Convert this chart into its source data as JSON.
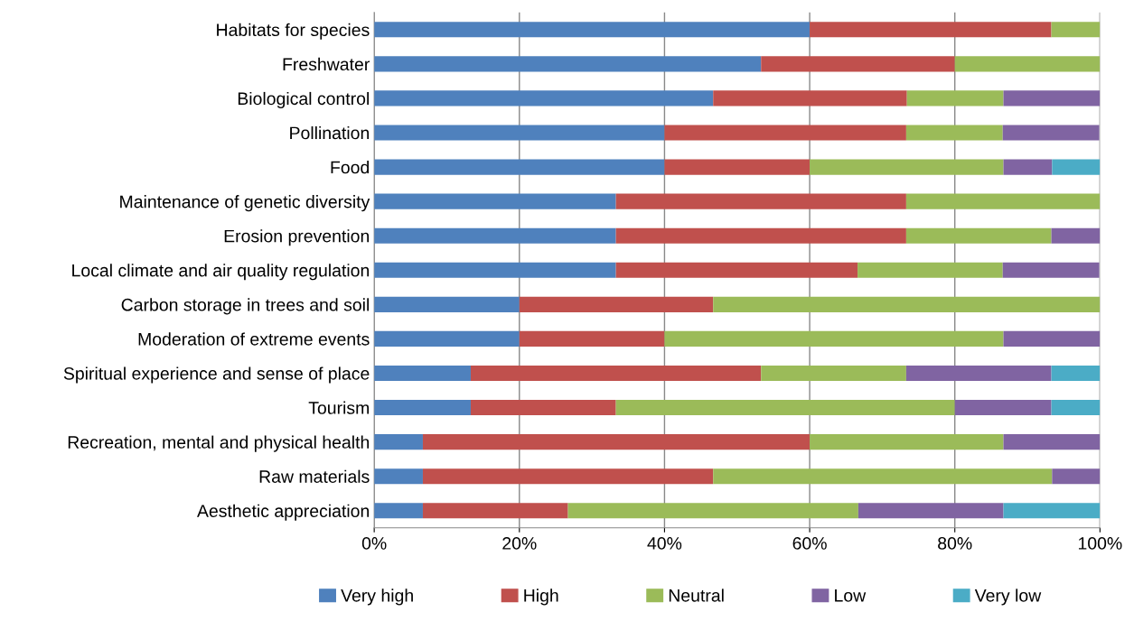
{
  "chart_data": {
    "type": "bar",
    "orientation": "horizontal",
    "stacked": true,
    "categories": [
      "Habitats for species",
      "Freshwater",
      "Biological control",
      "Pollination",
      "Food",
      "Maintenance of genetic diversity",
      "Erosion prevention",
      "Local climate and air quality regulation",
      "Carbon storage in trees and soil",
      "Moderation of extreme events",
      "Spiritual experience and sense of place",
      "Tourism",
      "Recreation, mental and physical health",
      "Raw materials",
      "Aesthetic appreciation"
    ],
    "series": [
      {
        "name": "Very high",
        "color": "#4f81bd",
        "values": [
          60,
          53.3,
          46.7,
          40,
          40,
          33.3,
          33.3,
          33.3,
          20,
          20,
          13.3,
          13.3,
          6.7,
          6.7,
          6.7
        ]
      },
      {
        "name": "High",
        "color": "#c0504d",
        "values": [
          33.3,
          26.7,
          26.7,
          33.3,
          20,
          40,
          40,
          33.3,
          26.7,
          20,
          40,
          20,
          53.3,
          40,
          20
        ]
      },
      {
        "name": "Neutral",
        "color": "#9bbb59",
        "values": [
          6.7,
          20,
          13.3,
          13.3,
          26.7,
          26.7,
          20,
          20,
          53.3,
          46.7,
          20,
          46.7,
          26.7,
          46.7,
          40
        ]
      },
      {
        "name": "Low",
        "color": "#8064a2",
        "values": [
          null,
          null,
          13.3,
          13.3,
          6.7,
          null,
          6.7,
          13.3,
          null,
          13.3,
          20,
          13.3,
          13.3,
          6.6,
          20
        ]
      },
      {
        "name": "Very low",
        "color": "#4bacc6",
        "values": [
          null,
          null,
          null,
          null,
          6.6,
          null,
          null,
          null,
          null,
          null,
          6.7,
          6.7,
          null,
          null,
          13.3
        ]
      }
    ],
    "xlim": [
      0,
      100
    ],
    "xticks": [
      {
        "value": 0,
        "label": "0%"
      },
      {
        "value": 20,
        "label": "20%"
      },
      {
        "value": 40,
        "label": "40%"
      },
      {
        "value": 60,
        "label": "60%"
      },
      {
        "value": 80,
        "label": "80%"
      },
      {
        "value": 100,
        "label": "100%"
      }
    ],
    "grid": "x",
    "legend": "bottom"
  }
}
